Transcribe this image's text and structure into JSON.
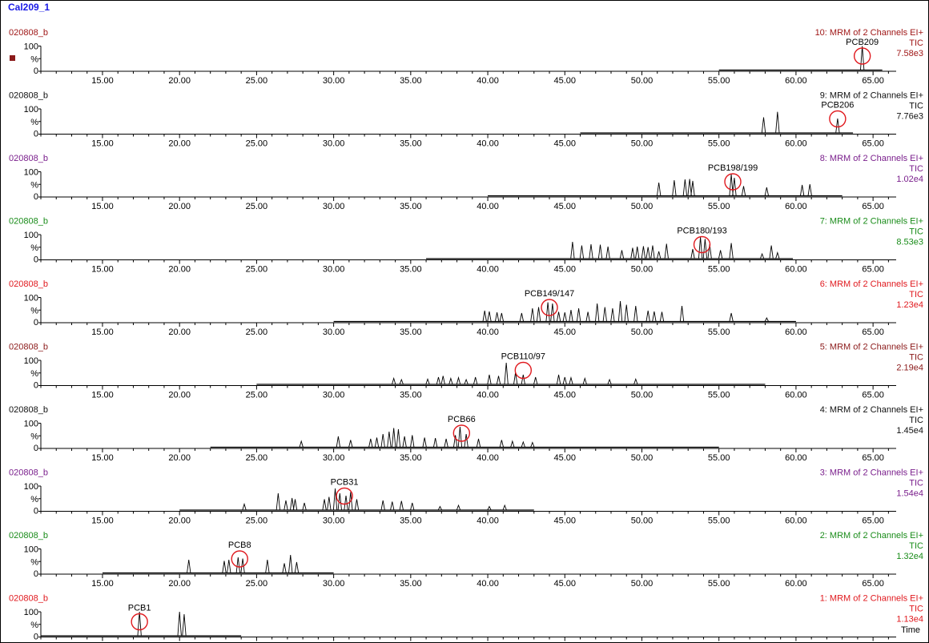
{
  "document_title": "Cal209_1",
  "x_axis_label": "Time",
  "colors": {
    "title": "#1a1ae6",
    "marker": "#8b1a1a",
    "circle": "#e0191e",
    "trace": "#000000"
  },
  "chart_data": [
    {
      "type": "line",
      "panel": 10,
      "sample": "020808_b",
      "channel": "10: MRM of 2 Channels EI+",
      "mode": "TIC",
      "intensity": "7.58e3",
      "color": "#a01818",
      "peak_label": "PCB209",
      "circled_peak_rt": 64.3,
      "trace_range": [
        55.0,
        65.6
      ],
      "xlim": [
        11.0,
        66.5
      ],
      "ylim": [
        0,
        100
      ],
      "y_ticks": [
        "100",
        "%",
        "0"
      ],
      "x_ticks": [
        "15.00",
        "20.00",
        "25.00",
        "30.00",
        "35.00",
        "40.00",
        "45.00",
        "50.00",
        "55.00",
        "60.00",
        "65.00"
      ],
      "peaks": [
        [
          64.3,
          100
        ]
      ]
    },
    {
      "type": "line",
      "panel": 9,
      "sample": "020808_b",
      "channel": "9: MRM of 2 Channels EI+",
      "mode": "TIC",
      "intensity": "7.76e3",
      "color": "#111111",
      "peak_label": "PCB206",
      "circled_peak_rt": 62.7,
      "trace_range": [
        46.0,
        63.7
      ],
      "xlim": [
        11.0,
        66.5
      ],
      "ylim": [
        0,
        100
      ],
      "y_ticks": [
        "100",
        "%",
        "0"
      ],
      "x_ticks": [
        "15.00",
        "20.00",
        "25.00",
        "30.00",
        "35.00",
        "40.00",
        "45.00",
        "50.00",
        "55.00",
        "60.00",
        "65.00"
      ],
      "peaks": [
        [
          57.9,
          65
        ],
        [
          58.8,
          88
        ],
        [
          62.7,
          60
        ]
      ]
    },
    {
      "type": "line",
      "panel": 8,
      "sample": "020808_b",
      "channel": "8: MRM of 2 Channels EI+",
      "mode": "TIC",
      "intensity": "1.02e4",
      "color": "#7a1f8c",
      "peak_label": "PCB198/199",
      "circled_peak_rt": 55.9,
      "trace_range": [
        40.0,
        63.0
      ],
      "xlim": [
        11.0,
        66.5
      ],
      "ylim": [
        0,
        100
      ],
      "y_ticks": [
        "100",
        "%",
        "0"
      ],
      "x_ticks": [
        "15.00",
        "20.00",
        "25.00",
        "30.00",
        "35.00",
        "40.00",
        "45.00",
        "50.00",
        "55.00",
        "60.00",
        "65.00"
      ],
      "peaks": [
        [
          51.1,
          55
        ],
        [
          52.1,
          65
        ],
        [
          52.8,
          68
        ],
        [
          53.1,
          70
        ],
        [
          53.3,
          62
        ],
        [
          55.8,
          90
        ],
        [
          56.0,
          75
        ],
        [
          56.6,
          40
        ],
        [
          58.1,
          35
        ],
        [
          60.4,
          45
        ],
        [
          60.9,
          48
        ]
      ]
    },
    {
      "type": "line",
      "panel": 7,
      "sample": "020808_b",
      "channel": "7: MRM of 2 Channels EI+",
      "mode": "TIC",
      "intensity": "8.53e3",
      "color": "#1a8c1a",
      "peak_label": "PCB180/193",
      "circled_peak_rt": 53.9,
      "trace_range": [
        36.0,
        59.8
      ],
      "xlim": [
        11.0,
        66.5
      ],
      "ylim": [
        0,
        100
      ],
      "y_ticks": [
        "100",
        "%",
        "0"
      ],
      "x_ticks": [
        "15.00",
        "20.00",
        "25.00",
        "30.00",
        "35.00",
        "40.00",
        "45.00",
        "50.00",
        "55.00",
        "60.00",
        "65.00"
      ],
      "peaks": [
        [
          45.5,
          70
        ],
        [
          46.1,
          55
        ],
        [
          46.7,
          60
        ],
        [
          47.3,
          58
        ],
        [
          47.8,
          50
        ],
        [
          48.7,
          35
        ],
        [
          49.4,
          45
        ],
        [
          49.7,
          50
        ],
        [
          50.1,
          52
        ],
        [
          50.4,
          48
        ],
        [
          50.7,
          55
        ],
        [
          51.1,
          30
        ],
        [
          51.6,
          62
        ],
        [
          53.3,
          40
        ],
        [
          53.8,
          90
        ],
        [
          54.1,
          82
        ],
        [
          54.4,
          60
        ],
        [
          55.1,
          35
        ],
        [
          55.8,
          65
        ],
        [
          57.8,
          20
        ],
        [
          58.4,
          55
        ],
        [
          58.8,
          25
        ]
      ]
    },
    {
      "type": "line",
      "panel": 6,
      "sample": "020808_b",
      "channel": "6: MRM of 2 Channels EI+",
      "mode": "TIC",
      "intensity": "1.23e4",
      "color": "#e0191e",
      "peak_label": "PCB149/147",
      "circled_peak_rt": 44.0,
      "trace_range": [
        30.0,
        60.0
      ],
      "xlim": [
        11.0,
        66.5
      ],
      "ylim": [
        0,
        100
      ],
      "y_ticks": [
        "100",
        "%",
        "0"
      ],
      "x_ticks": [
        "15.00",
        "20.00",
        "25.00",
        "30.00",
        "35.00",
        "40.00",
        "45.00",
        "50.00",
        "55.00",
        "60.00",
        "65.00"
      ],
      "peaks": [
        [
          39.8,
          45
        ],
        [
          40.1,
          42
        ],
        [
          40.6,
          38
        ],
        [
          40.9,
          35
        ],
        [
          42.2,
          35
        ],
        [
          42.9,
          55
        ],
        [
          43.3,
          60
        ],
        [
          43.9,
          80
        ],
        [
          44.2,
          75
        ],
        [
          44.6,
          40
        ],
        [
          45.0,
          38
        ],
        [
          45.4,
          48
        ],
        [
          45.9,
          55
        ],
        [
          46.5,
          40
        ],
        [
          47.1,
          75
        ],
        [
          47.6,
          60
        ],
        [
          48.1,
          55
        ],
        [
          48.6,
          85
        ],
        [
          49.0,
          70
        ],
        [
          49.6,
          65
        ],
        [
          50.4,
          45
        ],
        [
          50.8,
          42
        ],
        [
          51.3,
          40
        ],
        [
          52.6,
          65
        ],
        [
          55.8,
          35
        ],
        [
          58.1,
          15
        ]
      ]
    },
    {
      "type": "line",
      "panel": 5,
      "sample": "020808_b",
      "channel": "5: MRM of 2 Channels EI+",
      "mode": "TIC",
      "intensity": "2.19e4",
      "color": "#8b1a1a",
      "peak_label": "PCB110/97",
      "circled_peak_rt": 42.3,
      "trace_range": [
        25.0,
        58.0
      ],
      "xlim": [
        11.0,
        66.5
      ],
      "ylim": [
        0,
        100
      ],
      "y_ticks": [
        "100",
        "%",
        "0"
      ],
      "x_ticks": [
        "15.00",
        "20.00",
        "25.00",
        "30.00",
        "35.00",
        "40.00",
        "45.00",
        "50.00",
        "55.00",
        "60.00",
        "65.00"
      ],
      "peaks": [
        [
          33.9,
          25
        ],
        [
          34.4,
          20
        ],
        [
          36.1,
          22
        ],
        [
          36.8,
          30
        ],
        [
          37.1,
          35
        ],
        [
          37.6,
          25
        ],
        [
          38.1,
          28
        ],
        [
          38.6,
          20
        ],
        [
          39.2,
          30
        ],
        [
          40.1,
          40
        ],
        [
          40.7,
          35
        ],
        [
          41.2,
          90
        ],
        [
          41.8,
          50
        ],
        [
          42.3,
          40
        ],
        [
          43.1,
          30
        ],
        [
          44.6,
          40
        ],
        [
          45.0,
          30
        ],
        [
          45.4,
          28
        ],
        [
          46.3,
          25
        ],
        [
          47.9,
          20
        ],
        [
          49.6,
          22
        ]
      ]
    },
    {
      "type": "line",
      "panel": 4,
      "sample": "020808_b",
      "channel": "4: MRM of 2 Channels EI+",
      "mode": "TIC",
      "intensity": "1.45e4",
      "color": "#111111",
      "peak_label": "PCB66",
      "circled_peak_rt": 38.3,
      "trace_range": [
        22.0,
        55.0
      ],
      "xlim": [
        11.0,
        66.5
      ],
      "ylim": [
        0,
        100
      ],
      "y_ticks": [
        "100",
        "%",
        "0"
      ],
      "x_ticks": [
        "15.00",
        "20.00",
        "25.00",
        "30.00",
        "35.00",
        "40.00",
        "45.00",
        "50.00",
        "55.00",
        "60.00",
        "65.00"
      ],
      "peaks": [
        [
          27.9,
          25
        ],
        [
          30.3,
          45
        ],
        [
          31.1,
          30
        ],
        [
          32.4,
          35
        ],
        [
          32.8,
          40
        ],
        [
          33.2,
          55
        ],
        [
          33.6,
          65
        ],
        [
          33.9,
          80
        ],
        [
          34.2,
          75
        ],
        [
          34.6,
          45
        ],
        [
          35.1,
          50
        ],
        [
          35.9,
          40
        ],
        [
          36.6,
          38
        ],
        [
          37.3,
          35
        ],
        [
          37.9,
          50
        ],
        [
          38.2,
          85
        ],
        [
          38.6,
          55
        ],
        [
          39.4,
          35
        ],
        [
          40.9,
          30
        ],
        [
          41.6,
          25
        ],
        [
          42.3,
          22
        ],
        [
          42.9,
          20
        ]
      ]
    },
    {
      "type": "line",
      "panel": 3,
      "sample": "020808_b",
      "channel": "3: MRM of 2 Channels EI+",
      "mode": "TIC",
      "intensity": "1.54e4",
      "color": "#7a1f8c",
      "peak_label": "PCB31",
      "circled_peak_rt": 30.7,
      "trace_range": [
        20.0,
        43.0
      ],
      "xlim": [
        11.0,
        66.5
      ],
      "ylim": [
        0,
        100
      ],
      "y_ticks": [
        "100",
        "%",
        "0"
      ],
      "x_ticks": [
        "15.00",
        "20.00",
        "25.00",
        "30.00",
        "35.00",
        "40.00",
        "45.00",
        "50.00",
        "55.00",
        "60.00",
        "65.00"
      ],
      "peaks": [
        [
          24.2,
          25
        ],
        [
          26.4,
          70
        ],
        [
          26.9,
          40
        ],
        [
          27.3,
          50
        ],
        [
          27.5,
          45
        ],
        [
          28.1,
          30
        ],
        [
          29.4,
          45
        ],
        [
          29.7,
          55
        ],
        [
          30.1,
          90
        ],
        [
          30.4,
          70
        ],
        [
          30.8,
          60
        ],
        [
          31.1,
          75
        ],
        [
          31.5,
          45
        ],
        [
          33.2,
          40
        ],
        [
          33.8,
          35
        ],
        [
          34.4,
          38
        ],
        [
          35.1,
          30
        ],
        [
          36.9,
          15
        ],
        [
          38.1,
          20
        ],
        [
          40.1,
          15
        ],
        [
          41.1,
          20
        ]
      ]
    },
    {
      "type": "line",
      "panel": 2,
      "sample": "020808_b",
      "channel": "2: MRM of 2 Channels EI+",
      "mode": "TIC",
      "intensity": "1.32e4",
      "color": "#1a8c1a",
      "peak_label": "PCB8",
      "circled_peak_rt": 23.9,
      "trace_range": [
        15.0,
        30.0
      ],
      "xlim": [
        11.0,
        66.5
      ],
      "ylim": [
        0,
        100
      ],
      "y_ticks": [
        "100",
        "%",
        "0"
      ],
      "x_ticks": [
        "15.00",
        "20.00",
        "25.00",
        "30.00",
        "35.00",
        "40.00",
        "45.00",
        "50.00",
        "55.00",
        "60.00",
        "65.00"
      ],
      "peaks": [
        [
          20.6,
          55
        ],
        [
          22.9,
          50
        ],
        [
          23.2,
          55
        ],
        [
          23.8,
          65
        ],
        [
          24.1,
          60
        ],
        [
          25.7,
          55
        ],
        [
          26.8,
          40
        ],
        [
          27.2,
          75
        ],
        [
          27.6,
          45
        ]
      ]
    },
    {
      "type": "line",
      "panel": 1,
      "sample": "020808_b",
      "channel": "1: MRM of 2 Channels EI+",
      "mode": "TIC",
      "intensity": "1.13e4",
      "color": "#e0191e",
      "peak_label": "PCB1",
      "circled_peak_rt": 17.4,
      "trace_range": [
        11.0,
        24.0
      ],
      "xlim": [
        11.0,
        66.5
      ],
      "ylim": [
        0,
        100
      ],
      "y_ticks": [
        "100",
        "%",
        "0"
      ],
      "x_ticks": [
        "15.00",
        "20.00",
        "25.00",
        "30.00",
        "35.00",
        "40.00",
        "45.00",
        "50.00",
        "55.00",
        "60.00",
        "65.00"
      ],
      "peaks": [
        [
          17.4,
          100
        ],
        [
          20.0,
          100
        ],
        [
          20.3,
          90
        ]
      ]
    }
  ]
}
